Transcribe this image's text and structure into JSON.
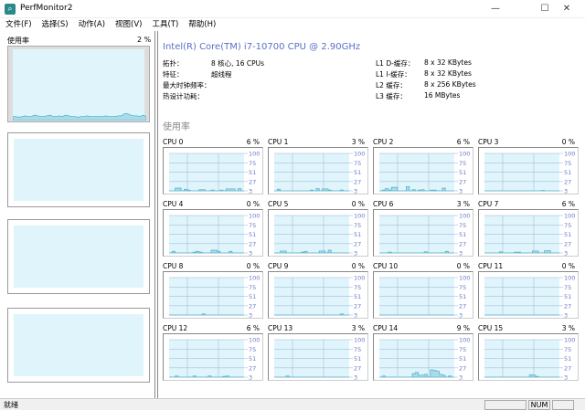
{
  "window": {
    "title": "PerfMonitor2",
    "minimize": "—",
    "maximize": "☐",
    "close": "✕",
    "icon": "magnifier-app-icon"
  },
  "menu": [
    "文件(F)",
    "选择(S)",
    "动作(A)",
    "视图(V)",
    "工具(T)",
    "帮助(H)"
  ],
  "left": {
    "usage_label": "使用率",
    "usage_pct": "2 %",
    "history": [
      3,
      3,
      2,
      3,
      4,
      3,
      3,
      5,
      4,
      3,
      3,
      4,
      5,
      3,
      3,
      4,
      3,
      5,
      4,
      3,
      3,
      2,
      3,
      3,
      4,
      3,
      3,
      3,
      3,
      3,
      4,
      3,
      3,
      3,
      4,
      4,
      7,
      7,
      5,
      4,
      4,
      3,
      5,
      3
    ]
  },
  "cpu": {
    "name": "Intel(R) Core(TM) i7-10700 CPU @ 2.90GHz",
    "left_info": [
      {
        "k": "拓扑：",
        "v": "8 核心, 16 CPUs"
      },
      {
        "k": "特征：",
        "v": "超线程"
      },
      {
        "k": "最大时钟频率：",
        "v": ""
      },
      {
        "k": "热设计功耗：",
        "v": ""
      }
    ],
    "right_info": [
      {
        "k": "L1 D-缓存：",
        "v": "8 x 32 KBytes"
      },
      {
        "k": "L1 I-缓存：",
        "v": "8 x 32 KBytes"
      },
      {
        "k": "L2 缓存：",
        "v": "8 x 256 KBytes"
      },
      {
        "k": "L3 缓存：",
        "v": "16 MBytes"
      }
    ]
  },
  "section_title": "使用率",
  "axis_ticks": [
    "100",
    "75",
    "51",
    "27",
    "3"
  ],
  "colors": {
    "plot_bg": "#dff5fb",
    "line": "#5ab4cc",
    "fill": "#a8dcea",
    "grid": "#9ab0d8",
    "tick": "#6a7ac8"
  },
  "cpus": [
    {
      "label": "CPU 0",
      "pct": "6 %",
      "history": [
        3,
        3,
        10,
        10,
        3,
        7,
        5,
        3,
        3,
        3,
        6,
        6,
        3,
        3,
        5,
        3,
        3,
        5,
        3,
        8,
        8,
        8,
        3,
        9,
        3
      ]
    },
    {
      "label": "CPU 1",
      "pct": "3 %",
      "history": [
        3,
        7,
        3,
        3,
        3,
        3,
        3,
        3,
        3,
        3,
        3,
        3,
        5,
        3,
        9,
        3,
        8,
        8,
        5,
        3,
        3,
        3,
        5,
        3,
        3
      ]
    },
    {
      "label": "CPU 2",
      "pct": "6 %",
      "history": [
        3,
        5,
        9,
        5,
        12,
        12,
        3,
        3,
        3,
        14,
        3,
        6,
        3,
        5,
        6,
        3,
        3,
        5,
        5,
        3,
        3,
        10,
        3,
        3,
        3
      ]
    },
    {
      "label": "CPU 3",
      "pct": "0 %",
      "history": [
        3,
        3,
        3,
        3,
        3,
        3,
        3,
        3,
        3,
        3,
        3,
        3,
        3,
        3,
        3,
        3,
        3,
        3,
        3,
        4,
        3,
        3,
        3,
        3,
        3
      ]
    },
    {
      "label": "CPU 4",
      "pct": "0 %",
      "history": [
        3,
        7,
        3,
        3,
        3,
        3,
        3,
        3,
        5,
        7,
        5,
        3,
        3,
        3,
        10,
        10,
        7,
        3,
        3,
        3,
        7,
        3,
        3,
        3,
        3
      ]
    },
    {
      "label": "CPU 5",
      "pct": "0 %",
      "history": [
        3,
        3,
        8,
        8,
        3,
        3,
        3,
        3,
        3,
        5,
        7,
        3,
        3,
        3,
        3,
        8,
        8,
        3,
        10,
        3,
        3,
        3,
        3,
        3,
        3
      ]
    },
    {
      "label": "CPU 6",
      "pct": "3 %",
      "history": [
        3,
        3,
        3,
        5,
        3,
        3,
        3,
        3,
        3,
        3,
        3,
        3,
        3,
        3,
        3,
        6,
        3,
        3,
        3,
        3,
        3,
        3,
        7,
        3,
        3
      ]
    },
    {
      "label": "CPU 7",
      "pct": "6 %",
      "history": [
        3,
        3,
        3,
        3,
        3,
        6,
        3,
        3,
        3,
        3,
        5,
        5,
        3,
        3,
        3,
        3,
        8,
        8,
        3,
        3,
        9,
        9,
        3,
        3,
        3
      ]
    },
    {
      "label": "CPU 8",
      "pct": "0 %",
      "history": [
        3,
        3,
        3,
        3,
        3,
        3,
        3,
        3,
        3,
        3,
        3,
        6,
        3,
        3,
        3,
        3,
        3,
        3,
        3,
        3,
        3,
        3,
        3,
        3,
        3
      ]
    },
    {
      "label": "CPU 9",
      "pct": "0 %",
      "history": [
        3,
        3,
        3,
        3,
        3,
        3,
        3,
        3,
        3,
        3,
        3,
        3,
        3,
        3,
        3,
        3,
        3,
        3,
        3,
        3,
        3,
        3,
        6,
        3,
        3
      ]
    },
    {
      "label": "CPU 10",
      "pct": "0 %",
      "history": [
        3,
        3,
        3,
        3,
        3,
        3,
        3,
        3,
        3,
        3,
        3,
        3,
        3,
        3,
        3,
        3,
        3,
        3,
        3,
        3,
        3,
        3,
        3,
        3,
        3
      ]
    },
    {
      "label": "CPU 11",
      "pct": "0 %",
      "history": [
        3,
        3,
        3,
        3,
        3,
        3,
        3,
        3,
        3,
        3,
        3,
        3,
        3,
        3,
        3,
        3,
        3,
        3,
        3,
        3,
        3,
        3,
        3,
        3,
        3
      ]
    },
    {
      "label": "CPU 12",
      "pct": "6 %",
      "history": [
        3,
        3,
        6,
        3,
        3,
        3,
        3,
        3,
        6,
        3,
        3,
        3,
        3,
        6,
        3,
        3,
        3,
        3,
        5,
        6,
        3,
        3,
        3,
        3,
        3
      ]
    },
    {
      "label": "CPU 13",
      "pct": "3 %",
      "history": [
        3,
        3,
        3,
        3,
        6,
        3,
        3,
        3,
        3,
        3,
        3,
        3,
        3,
        3,
        3,
        3,
        3,
        3,
        3,
        3,
        3,
        3,
        3,
        3,
        3
      ]
    },
    {
      "label": "CPU 14",
      "pct": "9 %",
      "history": [
        3,
        6,
        3,
        3,
        3,
        3,
        3,
        3,
        3,
        3,
        3,
        12,
        15,
        8,
        8,
        10,
        3,
        22,
        20,
        18,
        10,
        8,
        3,
        6,
        3
      ]
    },
    {
      "label": "CPU 15",
      "pct": "3 %",
      "history": [
        3,
        3,
        3,
        3,
        3,
        3,
        3,
        3,
        3,
        3,
        3,
        3,
        3,
        3,
        3,
        9,
        8,
        5,
        3,
        3,
        3,
        3,
        3,
        3,
        3
      ]
    }
  ],
  "statusbar": {
    "text": "就绪",
    "num": "NUM"
  }
}
